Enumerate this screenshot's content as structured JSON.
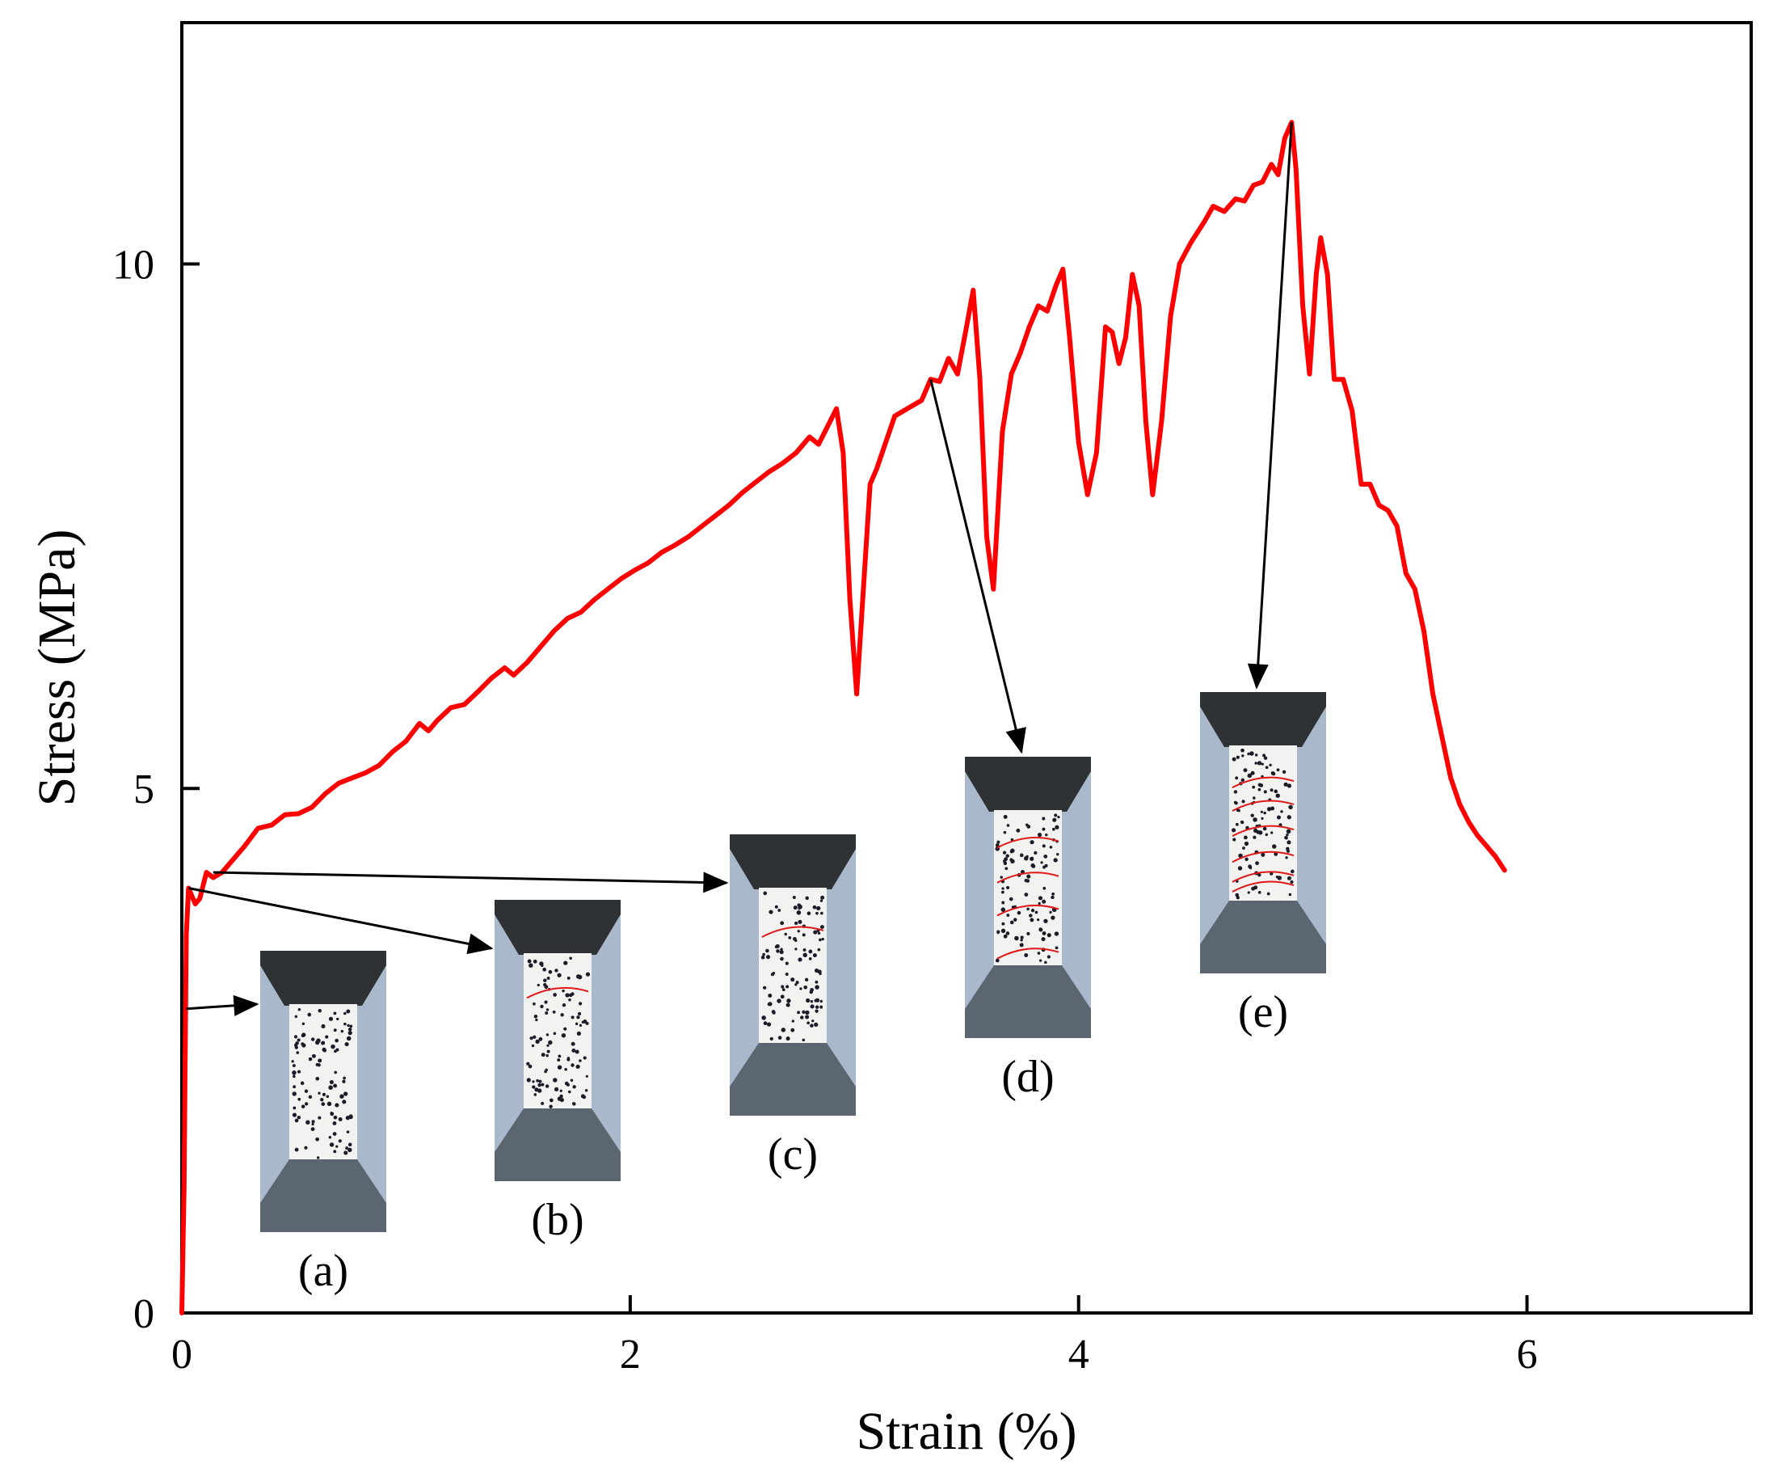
{
  "chart_data": {
    "type": "line",
    "xlabel": "Strain (%)",
    "ylabel": "Stress (MPa)",
    "xlim": [
      0,
      7
    ],
    "ylim": [
      0,
      12.3
    ],
    "x_ticks": [
      0,
      2,
      4,
      6
    ],
    "y_ticks": [
      0,
      5,
      10
    ],
    "x_tick_labels": [
      "0",
      "2",
      "4",
      "6"
    ],
    "y_tick_labels": [
      "0",
      "5",
      "10"
    ],
    "grid": false,
    "series": [
      {
        "name": "stress-strain",
        "color": "#ff0000",
        "points": [
          [
            0.0,
            0.0
          ],
          [
            0.01,
            1.2
          ],
          [
            0.015,
            2.5
          ],
          [
            0.02,
            3.6
          ],
          [
            0.03,
            4.05
          ],
          [
            0.06,
            3.9
          ],
          [
            0.08,
            3.95
          ],
          [
            0.11,
            4.2
          ],
          [
            0.14,
            4.15
          ],
          [
            0.18,
            4.2
          ],
          [
            0.22,
            4.3
          ],
          [
            0.28,
            4.45
          ],
          [
            0.34,
            4.62
          ],
          [
            0.4,
            4.65
          ],
          [
            0.46,
            4.75
          ],
          [
            0.52,
            4.76
          ],
          [
            0.58,
            4.82
          ],
          [
            0.64,
            4.95
          ],
          [
            0.7,
            5.05
          ],
          [
            0.76,
            5.1
          ],
          [
            0.82,
            5.15
          ],
          [
            0.88,
            5.22
          ],
          [
            0.94,
            5.35
          ],
          [
            1.0,
            5.45
          ],
          [
            1.06,
            5.62
          ],
          [
            1.1,
            5.55
          ],
          [
            1.14,
            5.65
          ],
          [
            1.2,
            5.77
          ],
          [
            1.26,
            5.8
          ],
          [
            1.32,
            5.92
          ],
          [
            1.38,
            6.05
          ],
          [
            1.44,
            6.15
          ],
          [
            1.48,
            6.08
          ],
          [
            1.54,
            6.2
          ],
          [
            1.6,
            6.35
          ],
          [
            1.66,
            6.5
          ],
          [
            1.72,
            6.62
          ],
          [
            1.78,
            6.68
          ],
          [
            1.84,
            6.8
          ],
          [
            1.9,
            6.9
          ],
          [
            1.96,
            7.0
          ],
          [
            2.02,
            7.08
          ],
          [
            2.08,
            7.15
          ],
          [
            2.14,
            7.25
          ],
          [
            2.2,
            7.32
          ],
          [
            2.26,
            7.4
          ],
          [
            2.32,
            7.5
          ],
          [
            2.38,
            7.6
          ],
          [
            2.44,
            7.7
          ],
          [
            2.5,
            7.82
          ],
          [
            2.56,
            7.92
          ],
          [
            2.62,
            8.02
          ],
          [
            2.68,
            8.1
          ],
          [
            2.74,
            8.2
          ],
          [
            2.8,
            8.35
          ],
          [
            2.84,
            8.28
          ],
          [
            2.88,
            8.45
          ],
          [
            2.92,
            8.62
          ],
          [
            2.95,
            8.2
          ],
          [
            2.98,
            6.8
          ],
          [
            3.01,
            5.9
          ],
          [
            3.04,
            6.9
          ],
          [
            3.07,
            7.9
          ],
          [
            3.1,
            8.05
          ],
          [
            3.14,
            8.3
          ],
          [
            3.18,
            8.55
          ],
          [
            3.22,
            8.6
          ],
          [
            3.26,
            8.65
          ],
          [
            3.3,
            8.7
          ],
          [
            3.34,
            8.9
          ],
          [
            3.38,
            8.88
          ],
          [
            3.42,
            9.1
          ],
          [
            3.46,
            8.95
          ],
          [
            3.5,
            9.4
          ],
          [
            3.53,
            9.75
          ],
          [
            3.56,
            8.9
          ],
          [
            3.59,
            7.4
          ],
          [
            3.62,
            6.9
          ],
          [
            3.66,
            8.4
          ],
          [
            3.7,
            8.95
          ],
          [
            3.74,
            9.15
          ],
          [
            3.78,
            9.4
          ],
          [
            3.82,
            9.6
          ],
          [
            3.86,
            9.55
          ],
          [
            3.9,
            9.8
          ],
          [
            3.93,
            9.95
          ],
          [
            3.96,
            9.3
          ],
          [
            4.0,
            8.3
          ],
          [
            4.04,
            7.8
          ],
          [
            4.08,
            8.2
          ],
          [
            4.12,
            9.4
          ],
          [
            4.15,
            9.35
          ],
          [
            4.18,
            9.05
          ],
          [
            4.21,
            9.3
          ],
          [
            4.24,
            9.9
          ],
          [
            4.27,
            9.6
          ],
          [
            4.3,
            8.5
          ],
          [
            4.33,
            7.8
          ],
          [
            4.37,
            8.5
          ],
          [
            4.41,
            9.5
          ],
          [
            4.45,
            10.0
          ],
          [
            4.5,
            10.2
          ],
          [
            4.56,
            10.4
          ],
          [
            4.6,
            10.55
          ],
          [
            4.65,
            10.5
          ],
          [
            4.7,
            10.62
          ],
          [
            4.74,
            10.6
          ],
          [
            4.78,
            10.75
          ],
          [
            4.82,
            10.78
          ],
          [
            4.86,
            10.95
          ],
          [
            4.89,
            10.85
          ],
          [
            4.92,
            11.2
          ],
          [
            4.95,
            11.35
          ],
          [
            4.97,
            10.9
          ],
          [
            5.0,
            9.6
          ],
          [
            5.03,
            8.95
          ],
          [
            5.06,
            9.9
          ],
          [
            5.08,
            10.25
          ],
          [
            5.11,
            9.9
          ],
          [
            5.14,
            8.9
          ],
          [
            5.18,
            8.9
          ],
          [
            5.22,
            8.6
          ],
          [
            5.26,
            7.9
          ],
          [
            5.3,
            7.9
          ],
          [
            5.34,
            7.7
          ],
          [
            5.38,
            7.65
          ],
          [
            5.42,
            7.5
          ],
          [
            5.46,
            7.05
          ],
          [
            5.5,
            6.9
          ],
          [
            5.54,
            6.5
          ],
          [
            5.58,
            5.9
          ],
          [
            5.62,
            5.5
          ],
          [
            5.66,
            5.1
          ],
          [
            5.7,
            4.85
          ],
          [
            5.74,
            4.68
          ],
          [
            5.78,
            4.55
          ],
          [
            5.82,
            4.45
          ],
          [
            5.86,
            4.35
          ],
          [
            5.9,
            4.22
          ]
        ]
      }
    ],
    "annotations": [
      {
        "label": "(a)",
        "from": [
          0.02,
          2.9
        ],
        "photo_bottom_stress": 0.75
      },
      {
        "label": "(b)",
        "from": [
          0.03,
          4.05
        ],
        "photo_bottom_stress": 1.22
      },
      {
        "label": "(c)",
        "from": [
          0.14,
          4.2
        ],
        "photo_bottom_stress": 1.82
      },
      {
        "label": "(d)",
        "from": [
          3.34,
          8.9
        ],
        "photo_bottom_stress": 2.55
      },
      {
        "label": "(e)",
        "from": [
          4.95,
          11.35
        ],
        "photo_bottom_stress": 3.15
      }
    ]
  }
}
